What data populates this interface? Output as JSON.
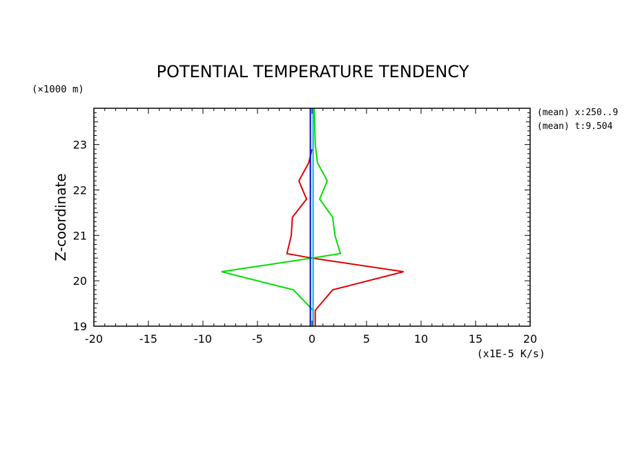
{
  "chart_data": {
    "type": "line",
    "title": "POTENTIAL TEMPERATURE TENDENCY",
    "ylabel": "Z-coordinate",
    "y_unit_label": "(×1000 m)",
    "x_unit_label": "(x1E-5 K/s)",
    "annotations": [
      "(mean) x:250..9",
      "(mean) t:9.504"
    ],
    "xlim": [
      -20,
      20
    ],
    "ylim": [
      19,
      23.8
    ],
    "x_ticks": [
      -20,
      -15,
      -10,
      -5,
      0,
      5,
      10,
      15,
      20
    ],
    "x_tick_labels": [
      "-20",
      "-15",
      "-10",
      "-5",
      "0",
      "5",
      "10",
      "15",
      "20"
    ],
    "y_ticks": [
      19,
      20,
      21,
      22,
      23
    ],
    "y_tick_labels": [
      "19",
      "20",
      "21",
      "22",
      "23"
    ],
    "series": [
      {
        "color": "#e00000",
        "points": [
          [
            0.3,
            19.0
          ],
          [
            0.3,
            19.35
          ],
          [
            1.9,
            19.8
          ],
          [
            8.4,
            20.2
          ],
          [
            0.0,
            20.5
          ],
          [
            -2.3,
            20.6
          ],
          [
            -1.9,
            21.0
          ],
          [
            -1.8,
            21.4
          ],
          [
            -0.5,
            21.8
          ],
          [
            -1.2,
            22.2
          ],
          [
            -0.3,
            22.6
          ],
          [
            0.0,
            22.9
          ]
        ]
      },
      {
        "color": "#00e000",
        "points": [
          [
            0.1,
            19.0
          ],
          [
            0.1,
            19.35
          ],
          [
            -1.7,
            19.8
          ],
          [
            -8.3,
            20.2
          ],
          [
            0.0,
            20.5
          ],
          [
            2.6,
            20.6
          ],
          [
            2.1,
            21.0
          ],
          [
            1.9,
            21.4
          ],
          [
            0.7,
            21.8
          ],
          [
            1.4,
            22.2
          ],
          [
            0.5,
            22.6
          ],
          [
            0.3,
            23.0
          ],
          [
            0.2,
            23.8
          ]
        ]
      },
      {
        "color": "#00aaff",
        "points": [
          [
            0.1,
            19.0
          ],
          [
            0.1,
            23.8
          ]
        ]
      },
      {
        "color": "#0000cc",
        "points": [
          [
            -0.15,
            19.0
          ],
          [
            -0.15,
            23.8
          ]
        ]
      }
    ]
  }
}
